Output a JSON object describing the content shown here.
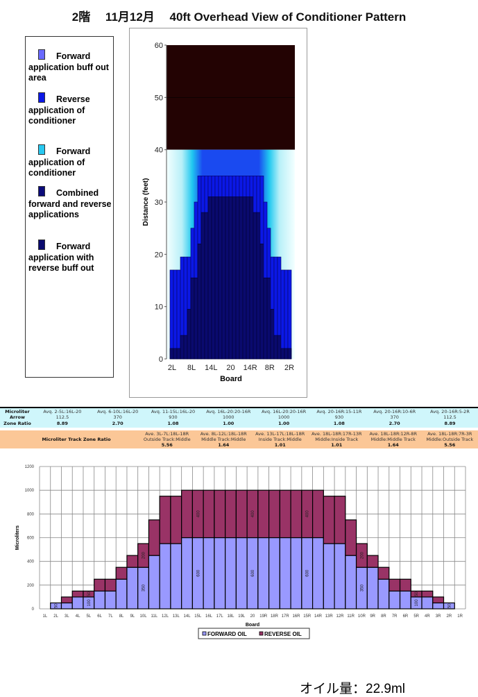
{
  "title": "2階　 11月12月　 40ft Overhead View of Conditioner Pattern",
  "legend": [
    {
      "label": "Forward application buff out area",
      "color": "#6a6aff"
    },
    {
      "label": "Reverse application of conditioner",
      "color": "#0b18e6"
    },
    {
      "label": "Forward application of conditioner",
      "color": "#28c8f0"
    },
    {
      "label": "Combined forward and reverse applications",
      "color": "#0b0b7a"
    },
    {
      "label": "Forward application with reverse buff out",
      "color": "#0a0a6e"
    }
  ],
  "overhead": {
    "ylabel": "Distance (feet)",
    "xlabel": "Board",
    "yticks": [
      "0",
      "10",
      "20",
      "30",
      "40",
      "50",
      "60"
    ],
    "xticks": [
      "2L",
      "8L",
      "14L",
      "20",
      "14R",
      "8R",
      "2R"
    ],
    "boards": [
      "2L",
      "3L",
      "4L",
      "5L",
      "6L",
      "7L",
      "8L",
      "9L",
      "10L",
      "11L",
      "12L",
      "13L",
      "14L",
      "15L",
      "16L",
      "17L",
      "18L",
      "19L",
      "20"
    ],
    "reverse_ft": [
      0,
      17,
      17,
      17,
      19.5,
      19.5,
      19.5,
      25,
      30,
      35,
      35,
      35,
      35,
      35,
      35,
      35,
      35,
      35,
      35
    ],
    "combined_ft": [
      0,
      2,
      2,
      2,
      4.5,
      4.5,
      9.5,
      15.5,
      15.5,
      22,
      28,
      28,
      31,
      31,
      31,
      31,
      31,
      31,
      31
    ],
    "oil_length_ft": 40,
    "lane_length_ft": 60
  },
  "table1": {
    "head": [
      "Microliter",
      "Arrow",
      "Zone Ratio"
    ],
    "cols": [
      {
        "label": "Avq. 2-5L:16L-20",
        "value": "112.5",
        "ratio": "8.89"
      },
      {
        "label": "Avq. 6-10L:16L-20",
        "value": "370",
        "ratio": "2.70"
      },
      {
        "label": "Avq. 11-15L:16L-20",
        "value": "930",
        "ratio": "1.08"
      },
      {
        "label": "Avq. 16L-20:20-16R",
        "value": "1000",
        "ratio": "1.00"
      },
      {
        "label": "Avq. 16L-20:20-16R",
        "value": "1000",
        "ratio": "1.00"
      },
      {
        "label": "Avq. 20-16R:15-11R",
        "value": "930",
        "ratio": "1.08"
      },
      {
        "label": "Avq. 20-16R:10-6R",
        "value": "370",
        "ratio": "2.70"
      },
      {
        "label": "Avq. 20-16R:5-2R",
        "value": "112.5",
        "ratio": "8.89"
      }
    ]
  },
  "table2": {
    "head": "Microliter Track Zone Ratio",
    "cols": [
      {
        "label": "Ave. 3L-7L:18L-18R",
        "desc": "Outside Track:Middle",
        "ratio": "5.56"
      },
      {
        "label": "Ave. 8L-12L:18L-18R",
        "desc": "Middle Track:Middle",
        "ratio": "1.64"
      },
      {
        "label": "Ave. 13L-17L:18L-18R",
        "desc": "Inside Track:Middle",
        "ratio": "1.01"
      },
      {
        "label": "Ave. 18L-18R:17R-13R",
        "desc": "Middle:Inside Track",
        "ratio": "1.01"
      },
      {
        "label": "Ave. 18L-18R:12R-8R",
        "desc": "Middle:Middle Track",
        "ratio": "1.64"
      },
      {
        "label": "Ave. 18L-18R:7R-3R",
        "desc": "Middle:Outside Track",
        "ratio": "5.56"
      }
    ]
  },
  "chart_data": {
    "type": "bar",
    "stacked": true,
    "xlabel": "Board",
    "ylabel": "Microliters",
    "ylim": [
      0,
      1200
    ],
    "yticks": [
      0,
      200,
      400,
      600,
      800,
      1000,
      1200
    ],
    "grid": true,
    "legend_position": "bottom",
    "categories": [
      "1L",
      "2L",
      "3L",
      "4L",
      "5L",
      "6L",
      "7L",
      "8L",
      "9L",
      "10L",
      "11L",
      "12L",
      "13L",
      "14L",
      "15L",
      "16L",
      "17L",
      "18L",
      "19L",
      "20",
      "19R",
      "18R",
      "17R",
      "16R",
      "15R",
      "14R",
      "13R",
      "12R",
      "11R",
      "10R",
      "9R",
      "8R",
      "7R",
      "6R",
      "5R",
      "4R",
      "3R",
      "2R",
      "1R"
    ],
    "series": [
      {
        "name": "FORWARD OIL",
        "color": "#9999ff",
        "values": [
          0,
          50,
          50,
          100,
          100,
          150,
          150,
          250,
          350,
          350,
          450,
          550,
          550,
          600,
          600,
          600,
          600,
          600,
          600,
          600,
          600,
          600,
          600,
          600,
          600,
          600,
          550,
          550,
          450,
          350,
          350,
          250,
          150,
          150,
          100,
          100,
          50,
          50,
          0
        ]
      },
      {
        "name": "REVERSE OIL",
        "color": "#993366",
        "values": [
          0,
          0,
          50,
          50,
          50,
          100,
          100,
          100,
          100,
          200,
          300,
          400,
          400,
          400,
          400,
          400,
          400,
          400,
          400,
          400,
          400,
          400,
          400,
          400,
          400,
          400,
          400,
          400,
          300,
          200,
          100,
          100,
          100,
          100,
          50,
          50,
          50,
          0,
          0
        ]
      }
    ],
    "data_labels": [
      {
        "category": "2L",
        "series": 0,
        "text": "50"
      },
      {
        "category": "5L",
        "series": 0,
        "text": "100"
      },
      {
        "category": "5L",
        "series": 1,
        "text": "50"
      },
      {
        "category": "10L",
        "series": 0,
        "text": "350"
      },
      {
        "category": "10L",
        "series": 1,
        "text": "200"
      },
      {
        "category": "15L",
        "series": 0,
        "text": "600"
      },
      {
        "category": "15L",
        "series": 1,
        "text": "400"
      },
      {
        "category": "20",
        "series": 0,
        "text": "600"
      },
      {
        "category": "20",
        "series": 1,
        "text": "400"
      },
      {
        "category": "15R",
        "series": 0,
        "text": "600"
      },
      {
        "category": "15R",
        "series": 1,
        "text": "400"
      },
      {
        "category": "10R",
        "series": 0,
        "text": "350"
      },
      {
        "category": "10R",
        "series": 1,
        "text": "200"
      },
      {
        "category": "5R",
        "series": 0,
        "text": "100"
      },
      {
        "category": "5R",
        "series": 1,
        "text": "50"
      },
      {
        "category": "2R",
        "series": 0,
        "text": "50"
      }
    ]
  },
  "total": "オイル量：22.9ml"
}
